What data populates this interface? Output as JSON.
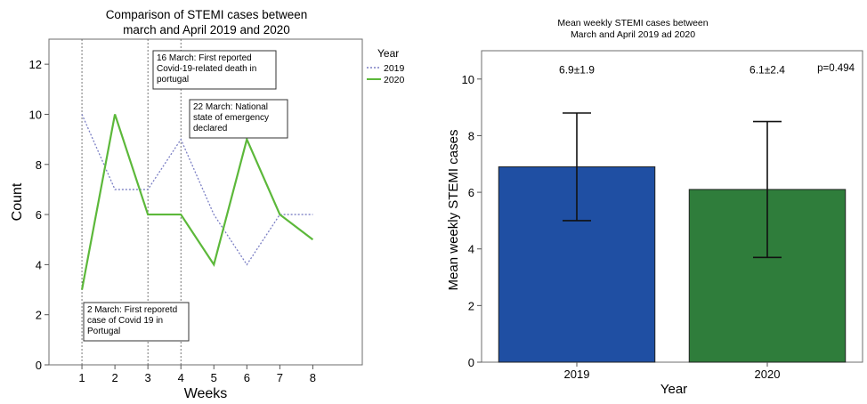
{
  "chart_data": [
    {
      "type": "line",
      "title_line1": "Comparison of STEMI cases between",
      "title_line2": "march and April 2019 and 2020",
      "xlabel": "Weeks",
      "ylabel": "Count",
      "x": [
        1,
        2,
        3,
        4,
        5,
        6,
        7,
        8
      ],
      "xlim": [
        0,
        9.5
      ],
      "ylim": [
        0,
        13
      ],
      "yticks": [
        0,
        2,
        4,
        6,
        8,
        10,
        12
      ],
      "legend_title": "Year",
      "legend_position": "top-right",
      "series": [
        {
          "name": "2019",
          "style": "dotted",
          "color": "#7b7fc4",
          "values": [
            10,
            7,
            7,
            9,
            6,
            4,
            6,
            6
          ]
        },
        {
          "name": "2020",
          "style": "solid",
          "color": "#5cb83a",
          "values": [
            3,
            10,
            6,
            6,
            4,
            9,
            6,
            5
          ]
        }
      ],
      "annotations": [
        {
          "week": 1,
          "lines": [
            "2 March: First reporetd",
            "case of Covid 19 in",
            "Portugal"
          ]
        },
        {
          "week": 3,
          "lines": [
            "16 March: First reported",
            "Covid-19-related death in",
            "portugal"
          ]
        },
        {
          "week": 4,
          "lines": [
            "22 March: National",
            "state of emergency",
            "declared"
          ]
        }
      ]
    },
    {
      "type": "bar",
      "title_line1": "Mean weekly STEMI cases between",
      "title_line2": "March and April 2019 ad 2020",
      "xlabel": "Year",
      "ylabel": "Mean weekly STEMI cases",
      "categories": [
        "2019",
        "2020"
      ],
      "values": [
        6.9,
        6.1
      ],
      "error": [
        1.9,
        2.4
      ],
      "bar_colors": [
        "#1f4fa3",
        "#2f7d3b"
      ],
      "data_labels": [
        "6.9±1.9",
        "6.1±2.4"
      ],
      "ylim": [
        0,
        11
      ],
      "yticks": [
        0,
        2,
        4,
        6,
        8,
        10
      ],
      "annotation": "p=0.494"
    }
  ]
}
